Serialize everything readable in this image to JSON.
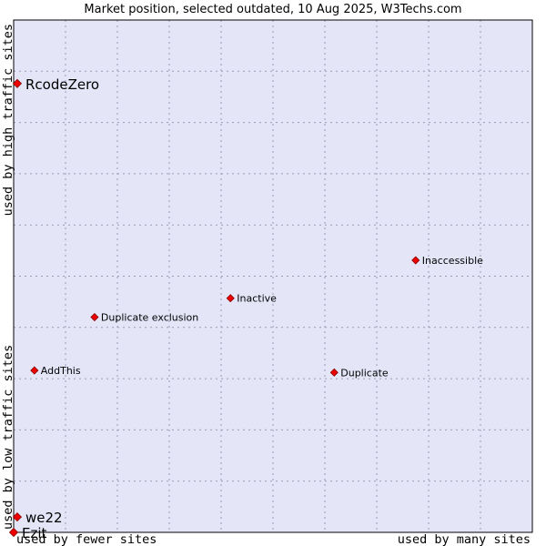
{
  "chart_data": {
    "type": "scatter",
    "title": "Market position, selected outdated, 10 Aug 2025, W3Techs.com",
    "xlabel_left": "used by fewer sites",
    "xlabel_right": "used by many sites",
    "ylabel_bottom": "used by low traffic sites",
    "ylabel_top": "used by high traffic sites",
    "xlim": [
      0,
      100
    ],
    "ylim": [
      0,
      100
    ],
    "grid": true,
    "colors": {
      "plot_background": "#e4e6f8",
      "grid": "#9a9ab4",
      "marker": "#ee0000",
      "marker_edge": "#880000"
    },
    "points": [
      {
        "name": "RcodeZero",
        "x": 0.7,
        "y": 87.6,
        "big": true
      },
      {
        "name": "Inaccessible",
        "x": 77.5,
        "y": 53.1,
        "big": false
      },
      {
        "name": "Inactive",
        "x": 41.8,
        "y": 45.7,
        "big": false
      },
      {
        "name": "Duplicate exclusion",
        "x": 15.6,
        "y": 42.0,
        "big": false
      },
      {
        "name": "AddThis",
        "x": 4.0,
        "y": 31.6,
        "big": false
      },
      {
        "name": "Duplicate",
        "x": 61.8,
        "y": 31.2,
        "big": false
      },
      {
        "name": "we22",
        "x": 0.7,
        "y": 3.0,
        "big": true
      },
      {
        "name": "Ezit",
        "x": 0.0,
        "y": 0.0,
        "big": true
      }
    ]
  }
}
